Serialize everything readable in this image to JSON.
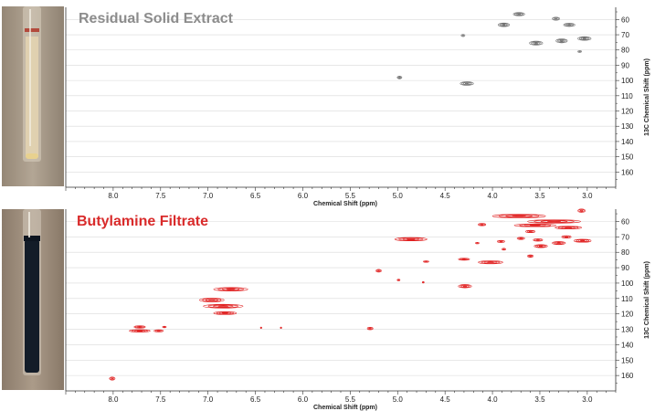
{
  "colors": {
    "top_contours": "#707070",
    "bottom_contours": "#e02020",
    "top_title": "#8c8c8c",
    "bottom_title": "#d92b2b",
    "grid": "#d9d9d9",
    "axis": "#333333",
    "tube_bg_top": "#a89a8c",
    "tube_bg_bottom": "#a08f80",
    "liquid_top": "#e8d9b8",
    "liquid_bottom": "#141d2a"
  },
  "chart_data": [
    {
      "type": "scatter",
      "title": "Residual Solid Extract",
      "xlabel": "Chemical Shift (ppm)",
      "ylabel": "13C Chemical Shift (ppm)",
      "x_ticks": [
        "8.0",
        "7.5",
        "7.0",
        "6.5",
        "6.0",
        "5.5",
        "5.0",
        "4.5",
        "4.0",
        "3.5",
        "3.0"
      ],
      "y_ticks": [
        "60",
        "70",
        "80",
        "90",
        "100",
        "110",
        "120",
        "130",
        "140",
        "150",
        "160"
      ],
      "xlim": [
        8.5,
        2.7
      ],
      "ylim": [
        52,
        170
      ],
      "grid": true,
      "x_axis_reversed": true,
      "y_axis_position": "right",
      "peaks": [
        {
          "x": 3.72,
          "y": 56.5,
          "w": 0.06,
          "h": 2.2
        },
        {
          "x": 3.88,
          "y": 63.5,
          "w": 0.06,
          "h": 2.4
        },
        {
          "x": 3.33,
          "y": 59.5,
          "w": 0.04,
          "h": 2.0
        },
        {
          "x": 3.19,
          "y": 63.5,
          "w": 0.06,
          "h": 2.2
        },
        {
          "x": 3.54,
          "y": 75.5,
          "w": 0.07,
          "h": 2.6
        },
        {
          "x": 3.27,
          "y": 74.0,
          "w": 0.06,
          "h": 2.6
        },
        {
          "x": 3.03,
          "y": 72.5,
          "w": 0.07,
          "h": 2.4
        },
        {
          "x": 3.08,
          "y": 81.0,
          "w": 0.02,
          "h": 1.2
        },
        {
          "x": 4.31,
          "y": 70.5,
          "w": 0.02,
          "h": 1.4
        },
        {
          "x": 4.27,
          "y": 102.0,
          "w": 0.07,
          "h": 2.4
        },
        {
          "x": 4.98,
          "y": 98.0,
          "w": 0.025,
          "h": 1.8
        }
      ]
    },
    {
      "type": "scatter",
      "title": "Butylamine Filtrate",
      "xlabel": "Chemical Shift (ppm)",
      "ylabel": "13C Chemical Shift (ppm)",
      "x_ticks": [
        "8.0",
        "7.5",
        "7.0",
        "6.5",
        "6.0",
        "5.5",
        "5.0",
        "4.5",
        "4.0",
        "3.5",
        "3.0"
      ],
      "y_ticks": [
        "60",
        "70",
        "80",
        "90",
        "100",
        "110",
        "120",
        "130",
        "140",
        "150",
        "160"
      ],
      "xlim": [
        8.5,
        2.7
      ],
      "ylim": [
        52,
        170
      ],
      "grid": true,
      "x_axis_reversed": true,
      "y_axis_position": "right",
      "peaks": [
        {
          "x": 3.72,
          "y": 56.5,
          "w": 0.28,
          "h": 2.2
        },
        {
          "x": 3.35,
          "y": 60.0,
          "w": 0.28,
          "h": 2.2
        },
        {
          "x": 3.55,
          "y": 62.5,
          "w": 0.22,
          "h": 1.8
        },
        {
          "x": 3.2,
          "y": 64.0,
          "w": 0.14,
          "h": 1.8
        },
        {
          "x": 3.06,
          "y": 53.0,
          "w": 0.04,
          "h": 2.2
        },
        {
          "x": 4.11,
          "y": 62.0,
          "w": 0.04,
          "h": 1.6
        },
        {
          "x": 3.6,
          "y": 66.5,
          "w": 0.05,
          "h": 1.5
        },
        {
          "x": 3.52,
          "y": 72.0,
          "w": 0.05,
          "h": 1.6
        },
        {
          "x": 3.49,
          "y": 76.0,
          "w": 0.07,
          "h": 2.0
        },
        {
          "x": 3.3,
          "y": 74.0,
          "w": 0.07,
          "h": 2.0
        },
        {
          "x": 3.22,
          "y": 70.0,
          "w": 0.05,
          "h": 1.6
        },
        {
          "x": 3.05,
          "y": 72.5,
          "w": 0.09,
          "h": 2.0
        },
        {
          "x": 3.7,
          "y": 71.0,
          "w": 0.04,
          "h": 1.5
        },
        {
          "x": 3.91,
          "y": 73.0,
          "w": 0.04,
          "h": 1.4
        },
        {
          "x": 3.88,
          "y": 78.0,
          "w": 0.02,
          "h": 1.2
        },
        {
          "x": 4.16,
          "y": 74.0,
          "w": 0.02,
          "h": 1.0
        },
        {
          "x": 3.6,
          "y": 82.5,
          "w": 0.03,
          "h": 1.6
        },
        {
          "x": 4.86,
          "y": 71.5,
          "w": 0.17,
          "h": 2.2
        },
        {
          "x": 4.02,
          "y": 86.5,
          "w": 0.13,
          "h": 2.0
        },
        {
          "x": 4.3,
          "y": 84.5,
          "w": 0.06,
          "h": 1.4
        },
        {
          "x": 4.7,
          "y": 86.0,
          "w": 0.03,
          "h": 1.0
        },
        {
          "x": 5.2,
          "y": 92.0,
          "w": 0.03,
          "h": 1.8
        },
        {
          "x": 4.29,
          "y": 102.0,
          "w": 0.07,
          "h": 2.2
        },
        {
          "x": 4.99,
          "y": 98.0,
          "w": 0.015,
          "h": 1.0
        },
        {
          "x": 4.73,
          "y": 99.5,
          "w": 0.01,
          "h": 0.8
        },
        {
          "x": 6.76,
          "y": 104.0,
          "w": 0.18,
          "h": 2.3
        },
        {
          "x": 6.96,
          "y": 111.0,
          "w": 0.13,
          "h": 2.4
        },
        {
          "x": 6.84,
          "y": 115.0,
          "w": 0.21,
          "h": 2.4
        },
        {
          "x": 6.82,
          "y": 119.5,
          "w": 0.12,
          "h": 1.8
        },
        {
          "x": 7.72,
          "y": 128.5,
          "w": 0.06,
          "h": 1.6
        },
        {
          "x": 7.72,
          "y": 131.0,
          "w": 0.11,
          "h": 1.6
        },
        {
          "x": 7.52,
          "y": 131.0,
          "w": 0.05,
          "h": 1.4
        },
        {
          "x": 7.46,
          "y": 128.5,
          "w": 0.02,
          "h": 1.0
        },
        {
          "x": 5.29,
          "y": 129.5,
          "w": 0.03,
          "h": 1.6
        },
        {
          "x": 6.44,
          "y": 129.0,
          "w": 0.008,
          "h": 0.7
        },
        {
          "x": 6.23,
          "y": 129.0,
          "w": 0.008,
          "h": 0.7
        },
        {
          "x": 8.01,
          "y": 162.0,
          "w": 0.03,
          "h": 2.0
        }
      ]
    }
  ]
}
